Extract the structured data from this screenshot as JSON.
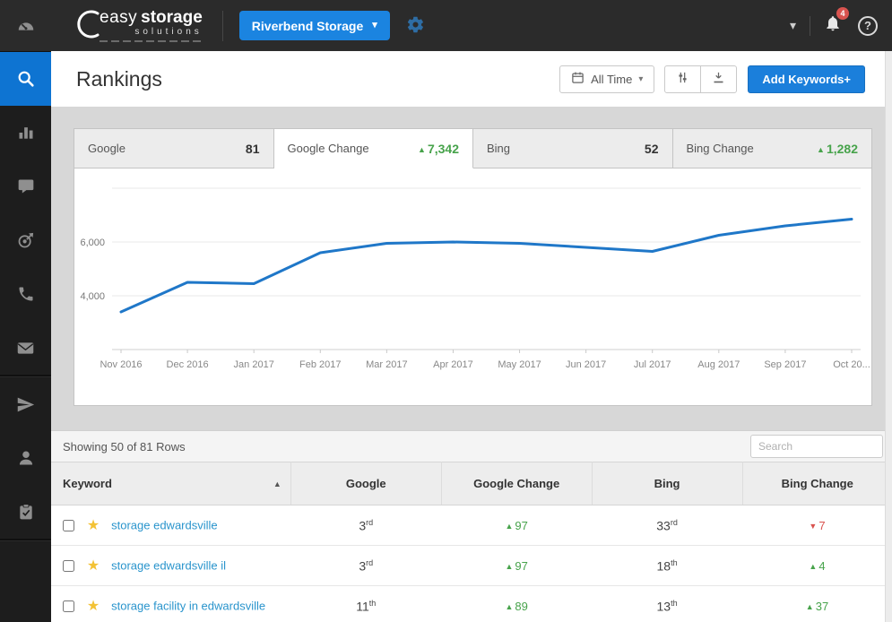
{
  "topbar": {
    "logo": {
      "word1": "easy",
      "word2": "storage",
      "word3": "solutions"
    },
    "account_button": "Riverbend Storage",
    "notification_count": "4"
  },
  "icons": {
    "caret_down": "▾",
    "help": "?",
    "star": "★",
    "icon_names": [
      "gauge-icon",
      "search-icon",
      "bar-chart-icon",
      "chat-icon",
      "target-icon",
      "phone-icon",
      "envelope-icon",
      "send-icon",
      "user-icon",
      "clipboard-check-icon",
      "calendar-icon",
      "sliders-icon",
      "download-icon",
      "bell-icon",
      "help-icon",
      "gear-icon"
    ]
  },
  "page": {
    "title": "Rankings",
    "time_filter_label": "All Time",
    "add_keywords_label": "Add Keywords+"
  },
  "tabs": [
    {
      "label": "Google",
      "value": "81",
      "active": false
    },
    {
      "label": "Google Change",
      "value": "7,342",
      "arrow": "▲",
      "active": true
    },
    {
      "label": "Bing",
      "value": "52",
      "active": false
    },
    {
      "label": "Bing Change",
      "value": "1,282",
      "arrow": "▲",
      "active": false
    }
  ],
  "chart_data": {
    "type": "line",
    "x": [
      "Nov 2016",
      "Dec 2016",
      "Jan 2017",
      "Feb 2017",
      "Mar 2017",
      "Apr 2017",
      "May 2017",
      "Jun 2017",
      "Jul 2017",
      "Aug 2017",
      "Sep 2017",
      "Oct 20..."
    ],
    "values": [
      3400,
      4500,
      4450,
      5600,
      5950,
      6000,
      5950,
      5800,
      5650,
      6250,
      6600,
      6850
    ],
    "title": "",
    "xlabel": "",
    "ylabel": "",
    "ylim": [
      2000,
      8000
    ],
    "yticks": [
      4000,
      6000
    ],
    "ytick_labels": [
      "4,000",
      "6,000"
    ],
    "gridlines": [
      4000,
      6000,
      8000
    ],
    "grid": true,
    "legend": false,
    "line_color": "#1f77c8"
  },
  "table": {
    "summary": "Showing 50 of 81 Rows",
    "search_placeholder": "Search",
    "sort_indicator": "▲",
    "columns": [
      "Keyword",
      "Google",
      "Google Change",
      "Bing",
      "Bing Change"
    ],
    "rows": [
      {
        "keyword": "storage edwardsville",
        "google": {
          "num": "3",
          "suffix": "rd"
        },
        "google_change": {
          "arrow": "▲",
          "value": "97",
          "dir": "up"
        },
        "bing": {
          "num": "33",
          "suffix": "rd"
        },
        "bing_change": {
          "arrow": "▼",
          "value": "7",
          "dir": "down"
        }
      },
      {
        "keyword": "storage edwardsville il",
        "google": {
          "num": "3",
          "suffix": "rd"
        },
        "google_change": {
          "arrow": "▲",
          "value": "97",
          "dir": "up"
        },
        "bing": {
          "num": "18",
          "suffix": "th"
        },
        "bing_change": {
          "arrow": "▲",
          "value": "4",
          "dir": "up"
        }
      },
      {
        "keyword": "storage facility in edwardsville",
        "google": {
          "num": "11",
          "suffix": "th"
        },
        "google_change": {
          "arrow": "▲",
          "value": "89",
          "dir": "up"
        },
        "bing": {
          "num": "13",
          "suffix": "th"
        },
        "bing_change": {
          "arrow": "▲",
          "value": "37",
          "dir": "up"
        }
      }
    ]
  },
  "colors": {
    "accent_blue": "#1b84e0",
    "active_nav_blue": "#0e74d2",
    "primary_button_blue": "#1b7fdb",
    "positive_green": "#47a34b",
    "negative_red": "#d9534f",
    "keyword_link_blue": "#2994cc",
    "star_yellow": "#f3c235",
    "chart_line_blue": "#1f77c8",
    "badge_red": "#d9534f"
  }
}
